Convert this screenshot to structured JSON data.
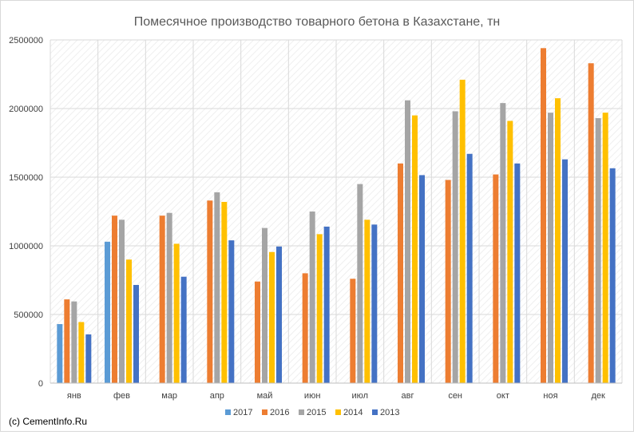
{
  "chart_data": {
    "type": "bar",
    "title": "Помесячное производство товарного бетона в Казахстане, тн",
    "categories": [
      "янв",
      "фев",
      "мар",
      "апр",
      "май",
      "июн",
      "июл",
      "авг",
      "сен",
      "окт",
      "ноя",
      "дек"
    ],
    "ylim": [
      0,
      2500000
    ],
    "yticks": [
      "0",
      "500000",
      "1000000",
      "1500000",
      "2000000",
      "2500000"
    ],
    "grid": true,
    "legend_position": "bottom",
    "series": [
      {
        "name": "2017",
        "color": "#5b9bd5",
        "values": [
          430000,
          1030000,
          null,
          null,
          null,
          null,
          null,
          null,
          null,
          null,
          null,
          null
        ]
      },
      {
        "name": "2016",
        "color": "#ed7d31",
        "values": [
          610000,
          1220000,
          1220000,
          1330000,
          740000,
          800000,
          760000,
          1600000,
          1480000,
          1520000,
          2440000,
          2330000
        ]
      },
      {
        "name": "2015",
        "color": "#a5a5a5",
        "values": [
          595000,
          1190000,
          1240000,
          1390000,
          1130000,
          1250000,
          1450000,
          2060000,
          1980000,
          2040000,
          1970000,
          1930000
        ]
      },
      {
        "name": "2014",
        "color": "#ffc000",
        "values": [
          445000,
          900000,
          1015000,
          1320000,
          955000,
          1085000,
          1190000,
          1950000,
          2210000,
          1910000,
          2075000,
          1970000
        ]
      },
      {
        "name": "2013",
        "color": "#4472c4",
        "values": [
          355000,
          715000,
          775000,
          1040000,
          995000,
          1140000,
          1155000,
          1515000,
          1670000,
          1600000,
          1630000,
          1565000
        ]
      }
    ]
  },
  "footer": {
    "copyright": "(c) CementInfo.Ru"
  }
}
